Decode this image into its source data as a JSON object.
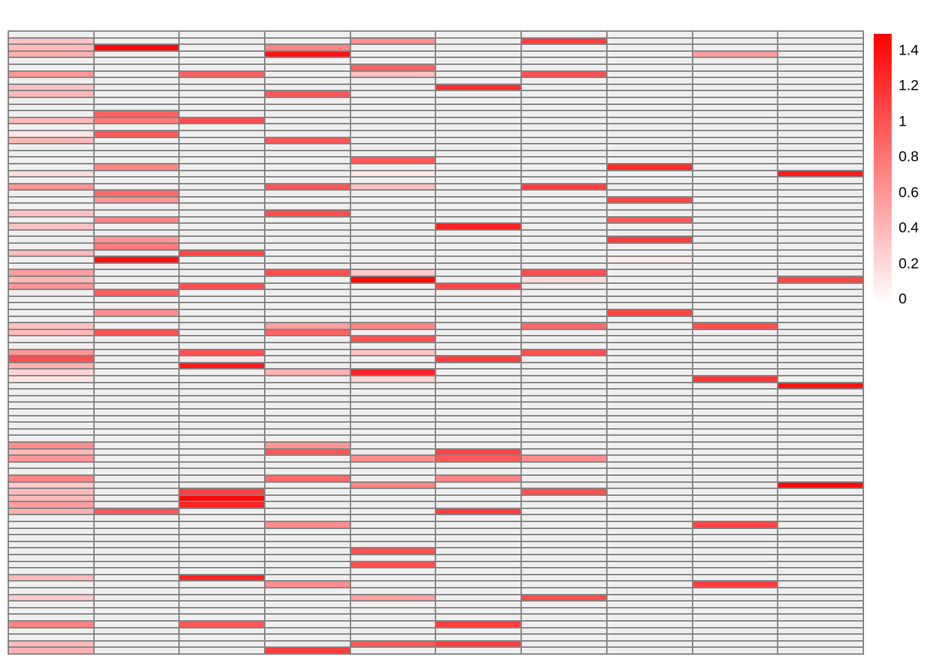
{
  "figure": {
    "background": "#ffffff"
  },
  "chart_data": {
    "type": "heatmap",
    "n_rows": 94,
    "n_cols": 10,
    "value_range": [
      0,
      1.45
    ],
    "colormap": {
      "low": "#ffffff",
      "high": "#ff0000",
      "zero_cell_color": "#efefef",
      "grid_line_color": "#828282"
    },
    "legend_position": "right",
    "colorbar": {
      "gradient_top": "#ff0000",
      "gradient_bottom": "#ffffff",
      "tick_labels": [
        "1.4",
        "1.2",
        "1",
        "0.8",
        "0.6",
        "0.4",
        "0.2",
        "0"
      ],
      "tick_values": [
        1.4,
        1.2,
        1.0,
        0.8,
        0.6,
        0.4,
        0.2,
        0
      ]
    },
    "values": [
      [
        0,
        0,
        0,
        0,
        0,
        0,
        0,
        0,
        0,
        0
      ],
      [
        0.35,
        0,
        0,
        0,
        0.65,
        0,
        1.1,
        0,
        0,
        0
      ],
      [
        0.4,
        1.4,
        0,
        0.7,
        0,
        0,
        0,
        0,
        0,
        0
      ],
      [
        0.45,
        0,
        0,
        1.35,
        0,
        0,
        0,
        0,
        0.55,
        0
      ],
      [
        0,
        0,
        0,
        0,
        0,
        0,
        0,
        0,
        0,
        0
      ],
      [
        0,
        0,
        0,
        0,
        0.9,
        0,
        0,
        0,
        0,
        0
      ],
      [
        0.6,
        0,
        0.9,
        0,
        0.35,
        0,
        1.0,
        0,
        0,
        0
      ],
      [
        0,
        0,
        0,
        0,
        0,
        0,
        0,
        0,
        0,
        0
      ],
      [
        0.35,
        0,
        0,
        0,
        0,
        1.2,
        0,
        0,
        0,
        0
      ],
      [
        0.4,
        0,
        0,
        0.95,
        0,
        0,
        0,
        0,
        0,
        0
      ],
      [
        0,
        0,
        0,
        0,
        0,
        0,
        0,
        0,
        0,
        0
      ],
      [
        0,
        0,
        0,
        0,
        0,
        0,
        0,
        0,
        0,
        0
      ],
      [
        0,
        0.9,
        0,
        0,
        0,
        0,
        0,
        0,
        0,
        0
      ],
      [
        0.4,
        0.75,
        1.0,
        0,
        0,
        0,
        0,
        0,
        0,
        0
      ],
      [
        0,
        0,
        0,
        0,
        0,
        0,
        0,
        0,
        0,
        0
      ],
      [
        0.15,
        0.95,
        0,
        0,
        0,
        0,
        0,
        0,
        0,
        0
      ],
      [
        0.4,
        0,
        0,
        0.95,
        0,
        0,
        0,
        0,
        0,
        0
      ],
      [
        0,
        0,
        0,
        0,
        0,
        0,
        0,
        0,
        0,
        0
      ],
      [
        0,
        0,
        0,
        0,
        0,
        0,
        0,
        0,
        0,
        0
      ],
      [
        0,
        0,
        0,
        0,
        0.95,
        0,
        0,
        0,
        0,
        0
      ],
      [
        0,
        0.7,
        0,
        0,
        0,
        0,
        0,
        1.2,
        0,
        0
      ],
      [
        0.2,
        0,
        0,
        0,
        0.15,
        0,
        0,
        0,
        0,
        1.3
      ],
      [
        0,
        0,
        0,
        0,
        0,
        0,
        0,
        0,
        0,
        0
      ],
      [
        0.6,
        0,
        0,
        0.95,
        0.35,
        0,
        1.1,
        0,
        0,
        0
      ],
      [
        0,
        0.85,
        0,
        0,
        0,
        0,
        0,
        0,
        0,
        0
      ],
      [
        0,
        0.6,
        0,
        0,
        0,
        0,
        0,
        1.05,
        0,
        0
      ],
      [
        0,
        0,
        0,
        0,
        0,
        0,
        0,
        0,
        0,
        0
      ],
      [
        0.35,
        0,
        0,
        1.0,
        0,
        0,
        0,
        0,
        0,
        0
      ],
      [
        0,
        0.7,
        0,
        0,
        0,
        0,
        0,
        0.95,
        0,
        0
      ],
      [
        0.35,
        0,
        0,
        0,
        0,
        1.25,
        0,
        0,
        0,
        0
      ],
      [
        0,
        0,
        0,
        0,
        0,
        0,
        0,
        0,
        0,
        0
      ],
      [
        0,
        0.6,
        0,
        0,
        0,
        0,
        0,
        1.1,
        0,
        0
      ],
      [
        0,
        0.75,
        0,
        0,
        0,
        0,
        0,
        0,
        0,
        0
      ],
      [
        0.4,
        0,
        1.05,
        0,
        0,
        0,
        0,
        0,
        0,
        0
      ],
      [
        0,
        1.35,
        0,
        0,
        0,
        0,
        0,
        0.12,
        0,
        0
      ],
      [
        0,
        0,
        0,
        0,
        0,
        0,
        0,
        0,
        0,
        0
      ],
      [
        0.55,
        0,
        0,
        1.0,
        0.3,
        0,
        1.0,
        0,
        0,
        0
      ],
      [
        0.4,
        0,
        0,
        0,
        1.4,
        0,
        0.2,
        0,
        0,
        1.05
      ],
      [
        0.6,
        0,
        1.0,
        0,
        0,
        1.05,
        0,
        0,
        0,
        0
      ],
      [
        0,
        0.9,
        0,
        0,
        0,
        0,
        0,
        0,
        0,
        0
      ],
      [
        0,
        0,
        0,
        0,
        0,
        0,
        0,
        0,
        0,
        0
      ],
      [
        0,
        0,
        0,
        0,
        0,
        0,
        0,
        0,
        0,
        0
      ],
      [
        0,
        0.65,
        0,
        0,
        0,
        0,
        0,
        1.05,
        0,
        0
      ],
      [
        0,
        0,
        0,
        0,
        0,
        0,
        0,
        0,
        0,
        0
      ],
      [
        0.35,
        0,
        0,
        0.55,
        0.7,
        0,
        0.85,
        0,
        1.0,
        0
      ],
      [
        0.4,
        1.0,
        0,
        0.9,
        0,
        0,
        0,
        0,
        0,
        0
      ],
      [
        0,
        0,
        0,
        0,
        1.0,
        0,
        0,
        0,
        0,
        0
      ],
      [
        0,
        0,
        0,
        0,
        0,
        0,
        0,
        0,
        0,
        0
      ],
      [
        0.6,
        0,
        1.0,
        0,
        0.35,
        0,
        1.0,
        0,
        0,
        0
      ],
      [
        1.0,
        0,
        0.15,
        0,
        0,
        1.1,
        0,
        0,
        0,
        0
      ],
      [
        0.45,
        0,
        1.3,
        0,
        0,
        0,
        0,
        0,
        0,
        0
      ],
      [
        0.25,
        0,
        0,
        0.45,
        1.25,
        0,
        0,
        0,
        0,
        0
      ],
      [
        0.15,
        0,
        0,
        0,
        0.25,
        0,
        0,
        0,
        1.15,
        0
      ],
      [
        0,
        0,
        0,
        0,
        0,
        0,
        0,
        0,
        0,
        1.35
      ],
      [
        0,
        0,
        0,
        0,
        0,
        0,
        0,
        0,
        0,
        0
      ],
      [
        0,
        0,
        0,
        0,
        0,
        0,
        0,
        0,
        0,
        0
      ],
      [
        0,
        0,
        0,
        0,
        0,
        0,
        0,
        0,
        0,
        0
      ],
      [
        0,
        0,
        0,
        0,
        0,
        0,
        0,
        0,
        0,
        0
      ],
      [
        0,
        0,
        0,
        0,
        0,
        0,
        0,
        0,
        0,
        0
      ],
      [
        0,
        0,
        0,
        0,
        0,
        0,
        0,
        0,
        0,
        0
      ],
      [
        0,
        0,
        0,
        0,
        0,
        0,
        0,
        0,
        0,
        0
      ],
      [
        0,
        0,
        0,
        0,
        0,
        0,
        0,
        0,
        0,
        0
      ],
      [
        0.65,
        0,
        0,
        0.6,
        0,
        0,
        0,
        0,
        0,
        0
      ],
      [
        0.4,
        0,
        0,
        0.95,
        0,
        1.05,
        0,
        0,
        0,
        0
      ],
      [
        0.6,
        0,
        0,
        0,
        0.65,
        0.95,
        0.65,
        0,
        0,
        0
      ],
      [
        0,
        0,
        0,
        0,
        0,
        0,
        0,
        0,
        0,
        0
      ],
      [
        0,
        0,
        0,
        0,
        0,
        0,
        0,
        0,
        0,
        0
      ],
      [
        0.7,
        0,
        0,
        0.85,
        0,
        0.7,
        0,
        0,
        0,
        0
      ],
      [
        0.3,
        0,
        0,
        0,
        0.7,
        0,
        0,
        0,
        0,
        1.4
      ],
      [
        0.4,
        0,
        1.1,
        0,
        0,
        0,
        1.0,
        0,
        0,
        0
      ],
      [
        0.4,
        0,
        1.4,
        0,
        0,
        0,
        0,
        0,
        0,
        0
      ],
      [
        0.55,
        0,
        1.25,
        0,
        0,
        0,
        0,
        0,
        0,
        0
      ],
      [
        0.45,
        0.95,
        0,
        0,
        0,
        1.1,
        0,
        0,
        0,
        0
      ],
      [
        0,
        0,
        0,
        0,
        0,
        0,
        0,
        0,
        0,
        0
      ],
      [
        0,
        0,
        0,
        0.65,
        0,
        0,
        0,
        0,
        1.05,
        0
      ],
      [
        0,
        0,
        0,
        0,
        0,
        0,
        0,
        0,
        0,
        0
      ],
      [
        0,
        0,
        0,
        0,
        0,
        0,
        0,
        0,
        0,
        0
      ],
      [
        0,
        0,
        0,
        0,
        0,
        0,
        0,
        0,
        0,
        0
      ],
      [
        0,
        0,
        0,
        0,
        1.0,
        0,
        0,
        0,
        0,
        0
      ],
      [
        0,
        0,
        0,
        0,
        0,
        0,
        0,
        0,
        0,
        0
      ],
      [
        0,
        0,
        0,
        0,
        1.0,
        0,
        0,
        0,
        0,
        0
      ],
      [
        0,
        0,
        0,
        0,
        0,
        0,
        0,
        0,
        0,
        0
      ],
      [
        0.4,
        0,
        1.25,
        0,
        0,
        0,
        0,
        0,
        0,
        0
      ],
      [
        0,
        0,
        0,
        0.65,
        0,
        0,
        0,
        0,
        1.1,
        0
      ],
      [
        0,
        0,
        0,
        0,
        0,
        0,
        0,
        0,
        0,
        0
      ],
      [
        0.3,
        0,
        0,
        0,
        0.55,
        0,
        1.0,
        0,
        0,
        0
      ],
      [
        0,
        0,
        0,
        0,
        0,
        0,
        0,
        0,
        0,
        0
      ],
      [
        0,
        0,
        0,
        0,
        0,
        0,
        0,
        0,
        0,
        0
      ],
      [
        0,
        0,
        0,
        0,
        0,
        0,
        0,
        0,
        0,
        0
      ],
      [
        0.7,
        0,
        0.95,
        0,
        0,
        1.1,
        0,
        0,
        0,
        0
      ],
      [
        0,
        0,
        0,
        0,
        0,
        0,
        0,
        0,
        0,
        0
      ],
      [
        0,
        0,
        0,
        0,
        0,
        0,
        0,
        0,
        0,
        0
      ],
      [
        0.4,
        0,
        0,
        0,
        0.95,
        1.1,
        0,
        0,
        0,
        0
      ],
      [
        0.45,
        0,
        0,
        1.1,
        0,
        0,
        0,
        0,
        0,
        0
      ]
    ]
  },
  "colorbar_layout": {
    "tick_top_y": 73,
    "tick_bottom_y": 433
  }
}
